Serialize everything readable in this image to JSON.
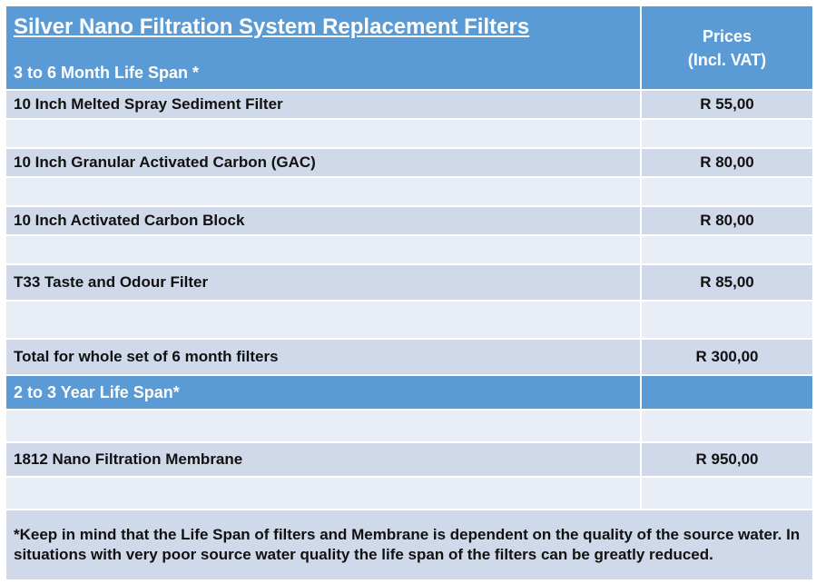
{
  "header": {
    "title": "Silver Nano Filtration System Replacement Filters",
    "subtitle": "3 to 6 Month Life Span *",
    "price_heading_line1": "Prices",
    "price_heading_line2": "(Incl. VAT)"
  },
  "rows": [
    {
      "name": "10 Inch Melted Spray Sediment Filter",
      "price": "R 55,00"
    },
    {
      "name": "10 Inch Granular Activated Carbon (GAC)",
      "price": "R 80,00"
    },
    {
      "name": "10 Inch Activated Carbon Block",
      "price": "R 80,00"
    },
    {
      "name": "T33 Taste and Odour Filter",
      "price": "R 85,00"
    },
    {
      "name": "Total for whole set of 6 month filters",
      "price": "R 300,00"
    }
  ],
  "section2": {
    "heading": "2 to 3 Year Life Span*",
    "rows": [
      {
        "name": "1812 Nano Filtration Membrane",
        "price": "R 950,00"
      }
    ]
  },
  "footnote": "*Keep in mind that the Life Span of filters and Membrane is dependent on the quality of the source water. In situations with very poor source water quality the life span of the filters can be greatly reduced.",
  "colors": {
    "header_blue": "#5b9bd5",
    "row_dark": "#cfd9ea",
    "row_light": "#e8edf6"
  }
}
